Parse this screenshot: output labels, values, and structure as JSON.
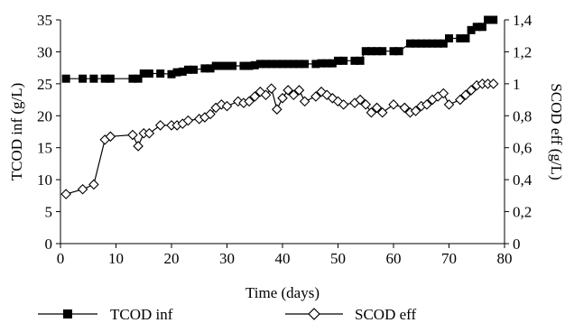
{
  "chart_data": {
    "type": "line",
    "xlabel": "Time (days)",
    "ylabel_left": "TCOD inf (g/L)",
    "ylabel_right": "SCOD eff (g/L)",
    "xlim": [
      0,
      80
    ],
    "ylim_left": [
      0,
      35
    ],
    "ylim_right": [
      0,
      1.4
    ],
    "x_ticks": [
      "0",
      "10",
      "20",
      "30",
      "40",
      "50",
      "60",
      "70",
      "80"
    ],
    "y_left_ticks": [
      "0",
      "5",
      "10",
      "15",
      "20",
      "25",
      "30",
      "35"
    ],
    "y_right_ticks": [
      "0",
      "0,2",
      "0,4",
      "0,6",
      "0,8",
      "1",
      "1,2",
      "1,4"
    ],
    "grid": false,
    "legend_position": "bottom-left",
    "series": [
      {
        "name": "TCOD inf",
        "axis": "left",
        "marker": "square-filled",
        "color": "#000000",
        "x": [
          1,
          4,
          6,
          8,
          9,
          13,
          14,
          15,
          16,
          18,
          20,
          21,
          22,
          23,
          24,
          26,
          27,
          28,
          29,
          30,
          31,
          33,
          34,
          35,
          36,
          37,
          38,
          39,
          40,
          41,
          42,
          43,
          44,
          46,
          47,
          48,
          49,
          50,
          51,
          53,
          54,
          55,
          56,
          57,
          58,
          60,
          61,
          63,
          64,
          65,
          66,
          67,
          68,
          69,
          70,
          72,
          73,
          74,
          75,
          76,
          77,
          78
        ],
        "y": [
          25.8,
          25.8,
          25.8,
          25.8,
          25.8,
          25.8,
          25.8,
          26.6,
          26.6,
          26.6,
          26.5,
          26.8,
          26.9,
          27.2,
          27.2,
          27.4,
          27.4,
          27.8,
          27.8,
          27.8,
          27.8,
          27.8,
          27.8,
          27.9,
          28.1,
          28.1,
          28.1,
          28.1,
          28.1,
          28.1,
          28.1,
          28.1,
          28.1,
          28.1,
          28.2,
          28.2,
          28.2,
          28.6,
          28.6,
          28.6,
          28.6,
          30.1,
          30.1,
          30.1,
          30.1,
          30.1,
          30.1,
          31.3,
          31.3,
          31.3,
          31.3,
          31.3,
          31.3,
          31.3,
          32.1,
          32.1,
          32.1,
          33.4,
          33.9,
          33.9,
          35.0,
          35.0
        ]
      },
      {
        "name": "SCOD eff",
        "axis": "right",
        "marker": "diamond-open",
        "color": "#000000",
        "x": [
          1,
          4,
          6,
          8,
          9,
          13,
          14,
          15,
          16,
          18,
          20,
          21,
          22,
          23,
          25,
          26,
          27,
          28,
          29,
          30,
          32,
          33,
          34,
          35,
          36,
          37,
          38,
          39,
          40,
          41,
          42,
          43,
          44,
          46,
          47,
          48,
          49,
          50,
          51,
          53,
          54,
          55,
          56,
          57,
          58,
          60,
          62,
          63,
          64,
          65,
          66,
          67,
          68,
          69,
          70,
          72,
          73,
          74,
          75,
          76,
          77,
          78
        ],
        "y": [
          0.31,
          0.34,
          0.37,
          0.65,
          0.67,
          0.68,
          0.61,
          0.69,
          0.69,
          0.74,
          0.74,
          0.74,
          0.75,
          0.77,
          0.78,
          0.79,
          0.81,
          0.85,
          0.87,
          0.86,
          0.89,
          0.88,
          0.89,
          0.92,
          0.95,
          0.93,
          0.97,
          0.84,
          0.91,
          0.96,
          0.93,
          0.96,
          0.89,
          0.92,
          0.95,
          0.93,
          0.91,
          0.89,
          0.87,
          0.88,
          0.9,
          0.87,
          0.82,
          0.85,
          0.82,
          0.87,
          0.85,
          0.82,
          0.83,
          0.86,
          0.87,
          0.9,
          0.92,
          0.94,
          0.87,
          0.9,
          0.93,
          0.96,
          0.99,
          1.0,
          1.0,
          1.0
        ]
      }
    ]
  }
}
